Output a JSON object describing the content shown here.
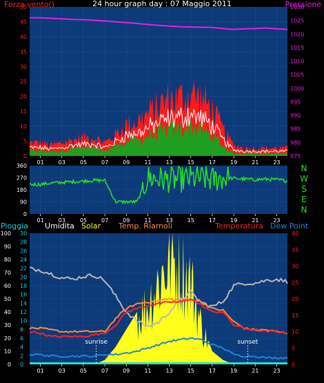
{
  "title": "24 hour graph day : 07 Maggio 2011",
  "x_ticks": [
    "01",
    "03",
    "05",
    "07",
    "09",
    "11",
    "13",
    "15",
    "17",
    "19",
    "21",
    "23"
  ],
  "colors": {
    "background": "#000000",
    "plot_bg": "#0d3a78",
    "grid": "#3f6aa8",
    "wind_gust": "#ff1a1a",
    "wind_avg": "#1f9e1f",
    "wind_line": "#ffffff",
    "pressure": "#e81ee8",
    "direction": "#22e022",
    "pioggia": "#12d3e8",
    "umidita": "#b8b8b8",
    "solar": "#ffff1a",
    "temp_riarnoli": "#ff8c42",
    "temperatura": "#ff2222",
    "dew_point": "#1f86d6",
    "solar_bar_bottom": "#25e0d0"
  },
  "top_chart": {
    "left_label": "Forza vento()",
    "right_label": "Pressione",
    "left_ticks": [
      "50",
      "45",
      "40",
      "35",
      "30",
      "25",
      "20",
      "15",
      "10",
      "5",
      "0"
    ],
    "right_ticks": [
      "1030",
      "1025",
      "1020",
      "1015",
      "1010",
      "1005",
      "1000",
      "995",
      "990",
      "985",
      "980",
      "975"
    ]
  },
  "dir_chart": {
    "left_ticks": [
      "360",
      "270",
      "180",
      "90",
      "0"
    ],
    "compass": [
      "N",
      "W",
      "S",
      "E",
      "N"
    ]
  },
  "bottom_chart": {
    "legend": [
      "Pioggia",
      "Umidita",
      "Solar",
      "Temp. Riarnoli",
      "Temperatura",
      "Dew Point"
    ],
    "left_ticks": [
      "100",
      "90",
      "80",
      "70",
      "60",
      "50",
      "40",
      "30",
      "20",
      "10",
      "0"
    ],
    "second_ticks": [
      "30",
      "28",
      "26",
      "24",
      "22",
      "20",
      "18",
      "16",
      "14",
      "12",
      "10",
      "8",
      "6",
      "4",
      "2",
      "0"
    ],
    "right_ticks": [
      "40",
      "35",
      "30",
      "25",
      "20",
      "15",
      "10",
      "5",
      "0"
    ],
    "sunrise_label": "sunrise",
    "sunset_label": "sunset"
  },
  "chart_data": [
    {
      "type": "area",
      "title": "24 hour graph day : 07 Maggio 2011",
      "x": [
        0,
        1,
        2,
        3,
        4,
        5,
        6,
        7,
        8,
        9,
        10,
        11,
        12,
        13,
        14,
        15,
        16,
        17,
        18,
        19,
        20,
        21,
        22,
        23,
        24
      ],
      "series": [
        {
          "name": "Forza vento",
          "role": "gust",
          "values": [
            5,
            5,
            4,
            5,
            6,
            7,
            7,
            5,
            8,
            12,
            13,
            16,
            19,
            22,
            22,
            24,
            22,
            18,
            10,
            4,
            3,
            3,
            3,
            3,
            3
          ]
        },
        {
          "name": "Forza vento",
          "role": "average",
          "values": [
            2,
            2,
            2,
            2,
            3,
            3,
            3,
            2,
            4,
            6,
            6,
            8,
            9,
            10,
            11,
            12,
            10,
            8,
            4,
            1,
            1,
            1,
            1,
            1,
            1
          ]
        },
        {
          "name": "Pressione",
          "axis": "right",
          "values": [
            1026,
            1026,
            1025.8,
            1025.6,
            1025.4,
            1025.3,
            1025.1,
            1024.8,
            1024.5,
            1024.2,
            1023.9,
            1023.5,
            1023.2,
            1022.9,
            1022.7,
            1022.6,
            1022.5,
            1022.4,
            1022.0,
            1021.7,
            1021.9,
            1022.0,
            1022.2,
            1021.9,
            1021.7
          ]
        }
      ],
      "ylabel": "Forza vento()",
      "ylim": [
        0,
        50
      ],
      "y2label": "Pressione",
      "y2lim": [
        975,
        1030
      ]
    },
    {
      "type": "line",
      "x": [
        0,
        1,
        2,
        3,
        4,
        5,
        6,
        7,
        8,
        9,
        10,
        11,
        12,
        13,
        14,
        15,
        16,
        17,
        18,
        19,
        20,
        21,
        22,
        23,
        24
      ],
      "series": [
        {
          "name": "Direzione",
          "values": [
            220,
            220,
            230,
            235,
            240,
            245,
            250,
            250,
            90,
            90,
            90,
            270,
            260,
            255,
            255,
            265,
            265,
            255,
            270,
            265,
            260,
            255,
            260,
            255,
            245
          ]
        }
      ],
      "ylim": [
        0,
        360
      ]
    },
    {
      "type": "line",
      "x": [
        0,
        1,
        2,
        3,
        4,
        5,
        6,
        7,
        8,
        9,
        10,
        11,
        12,
        13,
        14,
        15,
        16,
        17,
        18,
        19,
        20,
        21,
        22,
        23,
        24
      ],
      "series": [
        {
          "name": "Umidita",
          "axis": "left",
          "values": [
            73,
            72,
            69,
            66,
            65,
            67,
            68,
            64,
            52,
            40,
            33,
            29,
            32,
            40,
            49,
            55,
            47,
            44,
            48,
            60,
            62,
            62,
            64,
            65,
            63
          ]
        },
        {
          "name": "Solar",
          "axis": "second",
          "values": [
            0,
            0,
            0,
            0,
            0,
            0,
            0,
            1,
            4,
            8,
            12,
            16,
            22,
            28,
            26,
            22,
            10,
            3,
            1,
            0,
            0,
            0,
            0,
            0,
            0
          ]
        },
        {
          "name": "Temp. Riarnoli",
          "axis": "right",
          "values": [
            11,
            11,
            10.5,
            10,
            10,
            10,
            10,
            10,
            14,
            17,
            18.5,
            19,
            19.5,
            20,
            19.5,
            20,
            19,
            17,
            16.5,
            13,
            11,
            10.5,
            10.5,
            10,
            9.5
          ]
        },
        {
          "name": "Temperatura",
          "axis": "right",
          "values": [
            10,
            9.5,
            8.5,
            8.5,
            8.5,
            8.5,
            9,
            9.5,
            12,
            16,
            17,
            18,
            18.5,
            19,
            19,
            20,
            18,
            16,
            16,
            12,
            11,
            10.5,
            10,
            10,
            9.5
          ]
        },
        {
          "name": "Dew Point",
          "axis": "right",
          "values": [
            3,
            3,
            2.5,
            2.5,
            2.5,
            2.5,
            2.5,
            3,
            3,
            3.5,
            4,
            5,
            6,
            7,
            7.5,
            8,
            7.5,
            6,
            5,
            3,
            2.5,
            2.5,
            2,
            2,
            2
          ]
        },
        {
          "name": "Pioggia",
          "axis": "left",
          "values": [
            0,
            0,
            0,
            0,
            0,
            0,
            0,
            0,
            0,
            0,
            0,
            0,
            0,
            0,
            0,
            0,
            0,
            0,
            0,
            0,
            0,
            0,
            0,
            0,
            0
          ]
        }
      ],
      "ylim": [
        0,
        100
      ],
      "y2lim": [
        0,
        40
      ],
      "y3lim": [
        0,
        30
      ]
    }
  ]
}
